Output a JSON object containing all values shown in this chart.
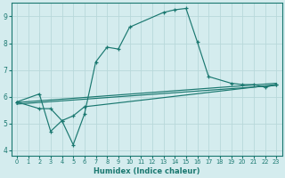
{
  "xlabel": "Humidex (Indice chaleur)",
  "bg_color": "#d4ecee",
  "line_color": "#1a7870",
  "grid_color": "#b8d8da",
  "xlim": [
    -0.5,
    23.5
  ],
  "ylim": [
    3.8,
    9.5
  ],
  "yticks": [
    4,
    5,
    6,
    7,
    8,
    9
  ],
  "xticks": [
    0,
    1,
    2,
    3,
    4,
    5,
    6,
    7,
    8,
    9,
    10,
    11,
    12,
    13,
    14,
    15,
    16,
    17,
    18,
    19,
    20,
    21,
    22,
    23
  ],
  "line1_x": [
    0,
    2,
    3,
    4,
    5,
    6,
    7,
    8,
    9,
    10,
    13,
    14,
    15,
    16,
    17,
    19,
    20,
    21,
    22,
    23
  ],
  "line1_y": [
    5.8,
    6.1,
    4.7,
    5.1,
    4.2,
    5.35,
    7.3,
    7.85,
    7.78,
    8.6,
    9.15,
    9.25,
    9.3,
    8.05,
    6.75,
    6.5,
    6.45,
    6.45,
    6.35,
    6.45
  ],
  "line2_x": [
    0,
    2,
    3,
    4,
    5,
    6,
    23
  ],
  "line2_y": [
    5.8,
    5.55,
    5.55,
    5.1,
    5.28,
    5.62,
    6.45
  ],
  "line3_x": [
    0,
    23
  ],
  "line3_y": [
    5.78,
    6.5
  ],
  "line4_x": [
    0,
    23
  ],
  "line4_y": [
    5.72,
    6.42
  ]
}
